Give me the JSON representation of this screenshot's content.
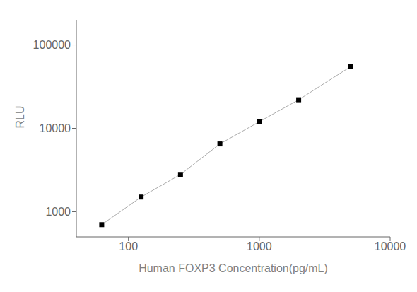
{
  "chart_data": {
    "type": "line",
    "x": [
      62.5,
      125,
      250,
      500,
      1000,
      2000,
      5000
    ],
    "values": [
      700,
      1500,
      2800,
      6500,
      12000,
      22000,
      55000
    ],
    "xlabel": "Human FOXP3 Concentration(pg/mL)",
    "ylabel": "RLU",
    "xlim": [
      40,
      10000
    ],
    "ylim": [
      500,
      200000
    ],
    "xticks": [
      100,
      1000,
      10000
    ],
    "yticks": [
      1000,
      10000,
      100000
    ],
    "log": true,
    "grid": false,
    "color": "#aaaaaa",
    "colors": [
      "black",
      "black",
      "black",
      "black",
      "black",
      "black",
      "black"
    ],
    "marker": "square",
    "line_style": "solid"
  }
}
